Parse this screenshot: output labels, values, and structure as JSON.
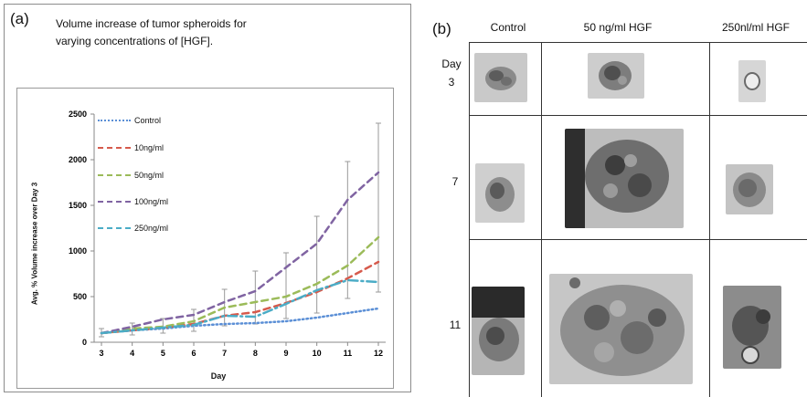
{
  "panel_a": {
    "label": "(a)",
    "title_line1": "Volume increase of tumor spheroids for",
    "title_line2": "varying concentrations of [HGF]."
  },
  "panel_b": {
    "label": "(b)",
    "columns": [
      "Control",
      "50 ng/ml HGF",
      "250nl/ml HGF"
    ],
    "rows": [
      "Day\n3",
      "7",
      "11"
    ]
  },
  "colors": {
    "control": "#5b8fd6",
    "10ng": "#d65a4c",
    "50ng": "#9bbb59",
    "100ng": "#8064a2",
    "250ng": "#4bacc6",
    "errorbar": "#9a9a9a"
  },
  "chart_data": {
    "type": "line",
    "xlabel": "Day",
    "ylabel": "Avg. % Volume increase over Day 3",
    "x": [
      3,
      4,
      5,
      6,
      7,
      8,
      9,
      10,
      11,
      12
    ],
    "ylim": [
      0,
      2500
    ],
    "yticks": [
      0,
      500,
      1000,
      1500,
      2000,
      2500
    ],
    "legend_position": "top-left",
    "series": [
      {
        "name": "Control",
        "style": "dotted",
        "values": [
          100,
          130,
          150,
          180,
          200,
          210,
          230,
          270,
          320,
          370
        ]
      },
      {
        "name": "10ng/ml",
        "style": "dashed",
        "values": [
          100,
          130,
          160,
          200,
          290,
          330,
          430,
          550,
          700,
          880
        ]
      },
      {
        "name": "50ng/ml",
        "style": "dashed",
        "values": [
          100,
          150,
          170,
          230,
          380,
          440,
          500,
          640,
          840,
          1150
        ]
      },
      {
        "name": "100ng/ml",
        "style": "dashed",
        "values": [
          100,
          170,
          250,
          300,
          440,
          560,
          820,
          1080,
          1560,
          1860
        ]
      },
      {
        "name": "250ng/ml",
        "style": "dash-dot",
        "values": [
          100,
          130,
          160,
          190,
          290,
          280,
          420,
          570,
          680,
          660
        ]
      }
    ],
    "error_bars": {
      "x": [
        3,
        4,
        5,
        6,
        7,
        8,
        9,
        10,
        11,
        12
      ],
      "low": [
        60,
        80,
        100,
        120,
        180,
        200,
        260,
        320,
        480,
        550
      ],
      "high": [
        150,
        210,
        260,
        360,
        580,
        780,
        980,
        1380,
        1980,
        2400
      ]
    }
  }
}
